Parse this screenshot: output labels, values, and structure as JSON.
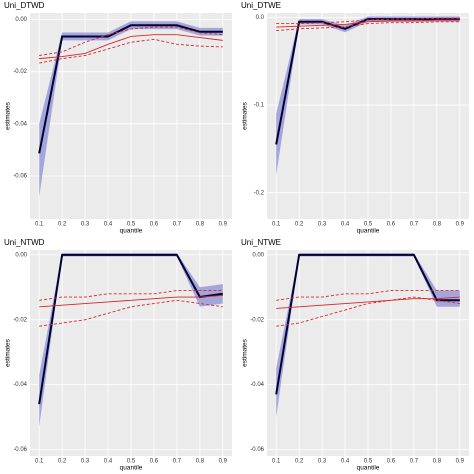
{
  "chart_data": [
    {
      "type": "line",
      "title": "Uni_DTWD",
      "x_label": "quantile",
      "y_label": "estimates",
      "x": [
        0.1,
        0.2,
        0.3,
        0.4,
        0.5,
        0.6,
        0.7,
        0.8,
        0.9
      ],
      "xlim": [
        0.06,
        0.94
      ],
      "xticks": [
        0.1,
        0.2,
        0.3,
        0.4,
        0.5,
        0.6,
        0.7,
        0.8,
        0.9
      ],
      "ylim": [
        -0.0765,
        0.0025
      ],
      "yticks": [
        {
          "value": 0,
          "label": "0.00"
        },
        -0.02,
        -0.04,
        -0.06
      ],
      "grid": true,
      "series": [
        {
          "color": "#000033",
          "band_color": "#8c8fd6",
          "values": [
            -0.0513,
            -0.0065,
            -0.0065,
            -0.0065,
            -0.0022,
            -0.0022,
            -0.0022,
            -0.0047,
            -0.0047
          ],
          "lower": [
            -0.068,
            -0.008,
            -0.008,
            -0.008,
            -0.0037,
            -0.0037,
            -0.0037,
            -0.0062,
            -0.0062
          ],
          "upper": [
            -0.04,
            -0.005,
            -0.005,
            -0.005,
            -0.0007,
            -0.0007,
            -0.0007,
            -0.0032,
            -0.0032
          ]
        },
        {
          "color": "#d62728",
          "values": [
            -0.015,
            -0.0142,
            -0.013,
            -0.0095,
            -0.0065,
            -0.0058,
            -0.0058,
            -0.0069,
            -0.008
          ]
        },
        {
          "color": "#d62728",
          "dashed": true,
          "values": [
            -0.0167,
            -0.015,
            -0.0138,
            -0.0113,
            -0.0087,
            -0.0076,
            -0.0095,
            -0.0102,
            -0.0105
          ]
        },
        {
          "color": "#d62728",
          "dashed": true,
          "values": [
            -0.0138,
            -0.0124,
            -0.0087,
            -0.0058,
            -0.0036,
            -0.0029,
            -0.0029,
            -0.0051,
            -0.0058
          ]
        }
      ]
    },
    {
      "type": "line",
      "title": "Uni_DTWE",
      "x_label": "quantile",
      "y_label": "estimates",
      "x": [
        0.1,
        0.2,
        0.3,
        0.4,
        0.5,
        0.6,
        0.7,
        0.8,
        0.9
      ],
      "xlim": [
        0.06,
        0.94
      ],
      "xticks": [
        0.1,
        0.2,
        0.3,
        0.4,
        0.5,
        0.6,
        0.7,
        0.8,
        0.9
      ],
      "ylim": [
        -0.23,
        0.005
      ],
      "yticks": [
        {
          "value": 0,
          "label": "0.0"
        },
        -0.1,
        -0.2
      ],
      "grid": true,
      "series": [
        {
          "color": "#000033",
          "band_color": "#8c8fd6",
          "values": [
            -0.145,
            -0.005,
            -0.005,
            -0.013,
            -0.002,
            -0.002,
            -0.002,
            -0.002,
            -0.002
          ],
          "lower": [
            -0.18,
            -0.008,
            -0.008,
            -0.017,
            -0.005,
            -0.005,
            -0.005,
            -0.005,
            -0.005
          ],
          "upper": [
            -0.11,
            -0.002,
            -0.002,
            -0.009,
            0.001,
            0.001,
            0.001,
            0.001,
            0.001
          ]
        },
        {
          "color": "#d62728",
          "values": [
            -0.011,
            -0.01,
            -0.009,
            -0.008,
            -0.005,
            -0.004,
            -0.004,
            -0.003,
            -0.003
          ]
        },
        {
          "color": "#d62728",
          "dashed": true,
          "values": [
            -0.015,
            -0.013,
            -0.012,
            -0.011,
            -0.007,
            -0.006,
            -0.006,
            -0.005,
            -0.005
          ]
        },
        {
          "color": "#d62728",
          "dashed": true,
          "values": [
            -0.007,
            -0.007,
            -0.006,
            -0.005,
            -0.003,
            -0.002,
            -0.002,
            -0.001,
            -0.001
          ]
        }
      ]
    },
    {
      "type": "line",
      "title": "Uni_NTWD",
      "x_label": "quantile",
      "y_label": "estimates",
      "x": [
        0.1,
        0.2,
        0.3,
        0.4,
        0.5,
        0.6,
        0.7,
        0.8,
        0.9
      ],
      "xlim": [
        0.06,
        0.94
      ],
      "xticks": [
        0.1,
        0.2,
        0.3,
        0.4,
        0.5,
        0.6,
        0.7,
        0.8,
        0.9
      ],
      "ylim": [
        -0.062,
        0.0015
      ],
      "yticks": [
        {
          "value": 0,
          "label": "0.00"
        },
        -0.02,
        -0.04,
        -0.06
      ],
      "grid": true,
      "series": [
        {
          "color": "#000033",
          "band_color": "#8c8fd6",
          "values": [
            -0.046,
            0,
            0,
            0,
            0,
            0,
            0,
            -0.013,
            -0.012
          ],
          "lower": [
            -0.053,
            -0.0005,
            -0.0005,
            -0.0005,
            -0.0005,
            -0.0005,
            -0.0005,
            -0.016,
            -0.015
          ],
          "upper": [
            -0.037,
            0.0005,
            0.0005,
            0.0005,
            0.0005,
            0.0005,
            0.0005,
            -0.01,
            -0.009
          ]
        },
        {
          "color": "#d62728",
          "values": [
            -0.016,
            -0.0155,
            -0.015,
            -0.0145,
            -0.014,
            -0.0135,
            -0.013,
            -0.013,
            -0.0125
          ]
        },
        {
          "color": "#d62728",
          "dashed": true,
          "values": [
            -0.022,
            -0.021,
            -0.02,
            -0.018,
            -0.016,
            -0.015,
            -0.014,
            -0.015,
            -0.016
          ]
        },
        {
          "color": "#d62728",
          "dashed": true,
          "values": [
            -0.014,
            -0.013,
            -0.013,
            -0.012,
            -0.012,
            -0.012,
            -0.011,
            -0.011,
            -0.011
          ]
        }
      ]
    },
    {
      "type": "line",
      "title": "Uni_NTWE",
      "x_label": "quantile",
      "y_label": "estimates",
      "x": [
        0.1,
        0.2,
        0.3,
        0.4,
        0.5,
        0.6,
        0.7,
        0.8,
        0.9
      ],
      "xlim": [
        0.06,
        0.94
      ],
      "xticks": [
        0.1,
        0.2,
        0.3,
        0.4,
        0.5,
        0.6,
        0.7,
        0.8,
        0.9
      ],
      "ylim": [
        -0.062,
        0.0015
      ],
      "yticks": [
        {
          "value": 0,
          "label": "0.00"
        },
        -0.02,
        -0.04,
        -0.06
      ],
      "grid": true,
      "series": [
        {
          "color": "#000033",
          "band_color": "#8c8fd6",
          "values": [
            -0.043,
            0,
            0,
            0,
            0,
            0,
            0,
            -0.014,
            -0.014
          ],
          "lower": [
            -0.05,
            -0.0005,
            -0.0005,
            -0.0005,
            -0.0005,
            -0.0005,
            -0.0005,
            -0.016,
            -0.016
          ],
          "upper": [
            -0.035,
            0.0005,
            0.0005,
            0.0005,
            0.0005,
            0.0005,
            0.0005,
            -0.011,
            -0.011
          ]
        },
        {
          "color": "#d62728",
          "values": [
            -0.0165,
            -0.016,
            -0.0155,
            -0.015,
            -0.0145,
            -0.014,
            -0.0135,
            -0.0135,
            -0.013
          ]
        },
        {
          "color": "#d62728",
          "dashed": true,
          "values": [
            -0.022,
            -0.021,
            -0.019,
            -0.017,
            -0.015,
            -0.014,
            -0.013,
            -0.014,
            -0.015
          ]
        },
        {
          "color": "#d62728",
          "dashed": true,
          "values": [
            -0.014,
            -0.013,
            -0.013,
            -0.012,
            -0.012,
            -0.011,
            -0.011,
            -0.011,
            -0.011
          ]
        }
      ]
    }
  ]
}
